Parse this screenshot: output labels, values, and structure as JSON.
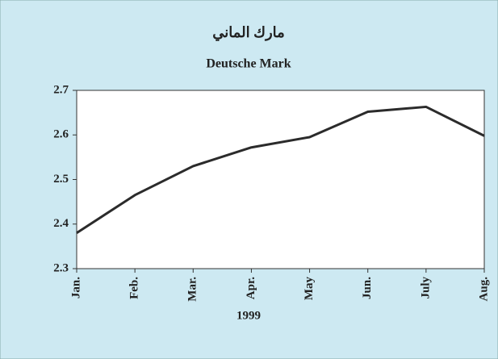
{
  "chart_data": {
    "type": "line",
    "title": "مارك الماني",
    "subtitle": "Deutsche Mark",
    "x_label": "1999",
    "categories": [
      "Jan.",
      "Feb.",
      "Mar.",
      "Apr.",
      "May",
      "Jun.",
      "July",
      "Aug."
    ],
    "values": [
      2.38,
      2.465,
      2.53,
      2.572,
      2.595,
      2.652,
      2.663,
      2.598
    ],
    "color": "#2b2b2b",
    "ylim": [
      2.3,
      2.7
    ],
    "yticks": [
      2.3,
      2.4,
      2.5,
      2.6,
      2.7
    ],
    "grid": false
  }
}
